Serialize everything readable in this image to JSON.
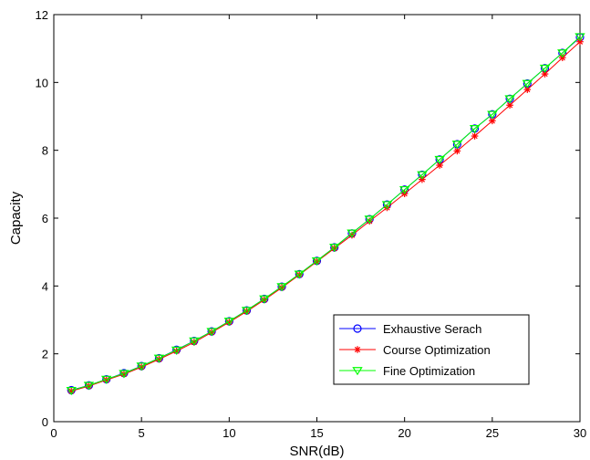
{
  "chart_data": {
    "type": "line",
    "xlabel": "SNR(dB)",
    "ylabel": "Capacity",
    "xlim": [
      0,
      30
    ],
    "ylim": [
      0,
      12
    ],
    "xticks": [
      0,
      5,
      10,
      15,
      20,
      25,
      30
    ],
    "yticks": [
      0,
      2,
      4,
      6,
      8,
      10,
      12
    ],
    "grid": false,
    "legend_position": "lower-right",
    "x": [
      1,
      2,
      3,
      4,
      5,
      6,
      7,
      8,
      9,
      10,
      11,
      12,
      13,
      14,
      15,
      16,
      17,
      18,
      19,
      20,
      21,
      22,
      23,
      24,
      25,
      26,
      27,
      28,
      29,
      30
    ],
    "series": [
      {
        "name": "Exhaustive Serach",
        "color": "#0000ff",
        "marker": "circle",
        "values": [
          0.93,
          1.07,
          1.25,
          1.43,
          1.64,
          1.87,
          2.12,
          2.38,
          2.66,
          2.96,
          3.28,
          3.62,
          3.98,
          4.35,
          4.74,
          5.14,
          5.55,
          5.97,
          6.4,
          6.84,
          7.28,
          7.73,
          8.18,
          8.64,
          9.06,
          9.52,
          9.97,
          10.42,
          10.87,
          11.33
        ]
      },
      {
        "name": "Course Optimization",
        "color": "#ff0000",
        "marker": "star",
        "values": [
          0.9,
          1.05,
          1.23,
          1.4,
          1.61,
          1.84,
          2.08,
          2.34,
          2.63,
          2.93,
          3.25,
          3.59,
          3.95,
          4.33,
          4.72,
          5.11,
          5.5,
          5.91,
          6.31,
          6.72,
          7.14,
          7.56,
          7.98,
          8.42,
          8.87,
          9.33,
          9.79,
          10.25,
          10.73,
          11.2
        ]
      },
      {
        "name": "Fine Optimization",
        "color": "#00ff00",
        "marker": "triangle-down",
        "values": [
          0.92,
          1.07,
          1.25,
          1.42,
          1.64,
          1.87,
          2.11,
          2.38,
          2.66,
          2.96,
          3.28,
          3.62,
          3.98,
          4.35,
          4.74,
          5.14,
          5.56,
          5.97,
          6.4,
          6.84,
          7.28,
          7.73,
          8.18,
          8.64,
          9.06,
          9.52,
          9.97,
          10.42,
          10.87,
          11.35
        ]
      }
    ]
  }
}
